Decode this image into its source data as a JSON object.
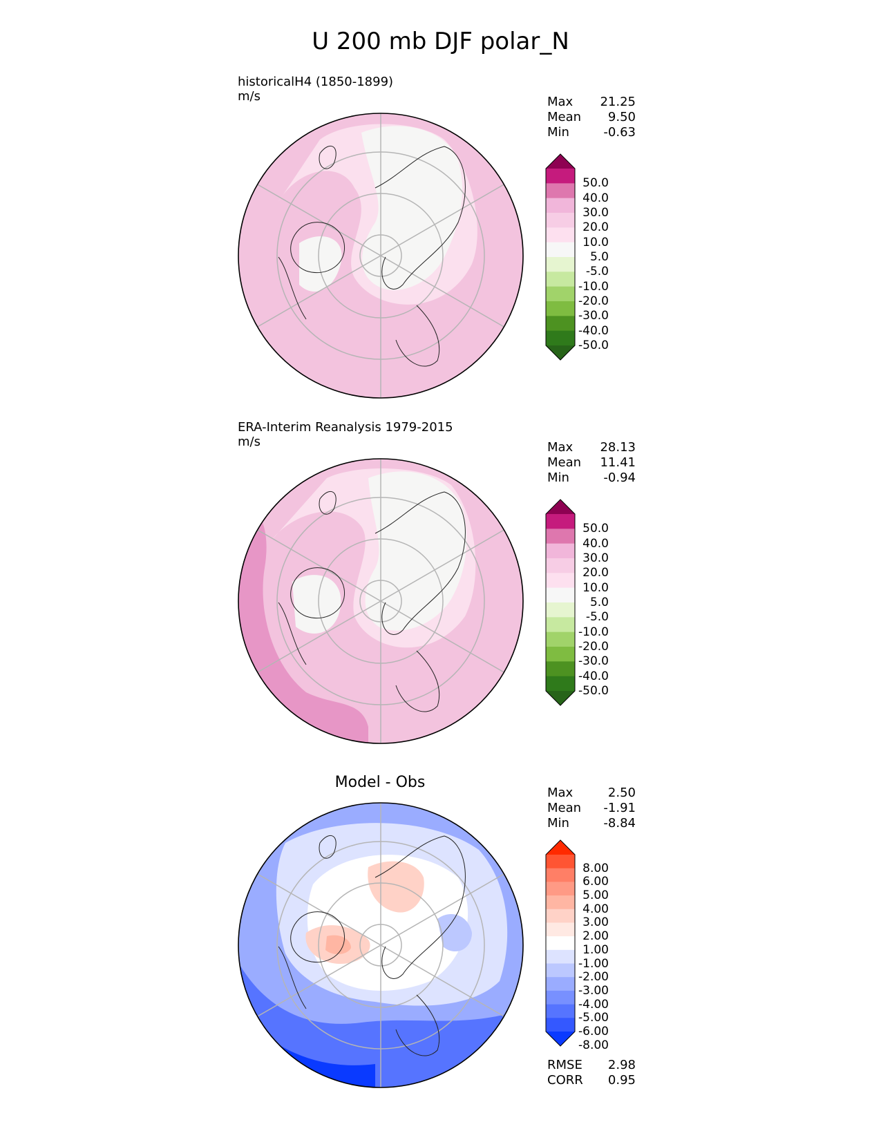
{
  "title": "U 200 mb DJF polar_N",
  "panels": [
    {
      "label_line1": "historicalH4 (1850-1899)",
      "label_line2": "m/s",
      "stats": [
        {
          "k": "Max",
          "v": "21.25"
        },
        {
          "k": "Mean",
          "v": "9.50"
        },
        {
          "k": "Min",
          "v": "-0.63"
        }
      ],
      "colorbar": {
        "labels": [
          "50.0",
          "40.0",
          "30.0",
          "20.0",
          "10.0",
          "5.0",
          "-5.0",
          "-10.0",
          "-20.0",
          "-30.0",
          "-40.0",
          "-50.0"
        ],
        "colors": [
          "#8e0152",
          "#c51b7d",
          "#de77ae",
          "#f1b6da",
          "#f7cde5",
          "#fde0ef",
          "#f7f7f7",
          "#e6f5d0",
          "#c7e9a0",
          "#a1d36a",
          "#7fbc41",
          "#4d9221",
          "#2f7a1b",
          "#276419"
        ]
      }
    },
    {
      "label_line1": "ERA-Interim Reanalysis 1979-2015",
      "label_line2": "m/s",
      "stats": [
        {
          "k": "Max",
          "v": "28.13"
        },
        {
          "k": "Mean",
          "v": "11.41"
        },
        {
          "k": "Min",
          "v": "-0.94"
        }
      ],
      "colorbar": {
        "labels": [
          "50.0",
          "40.0",
          "30.0",
          "20.0",
          "10.0",
          "5.0",
          "-5.0",
          "-10.0",
          "-20.0",
          "-30.0",
          "-40.0",
          "-50.0"
        ],
        "colors": [
          "#8e0152",
          "#c51b7d",
          "#de77ae",
          "#f1b6da",
          "#f7cde5",
          "#fde0ef",
          "#f7f7f7",
          "#e6f5d0",
          "#c7e9a0",
          "#a1d36a",
          "#7fbc41",
          "#4d9221",
          "#2f7a1b",
          "#276419"
        ]
      }
    },
    {
      "title": "Model - Obs",
      "stats": [
        {
          "k": "Max",
          "v": "2.50"
        },
        {
          "k": "Mean",
          "v": "-1.91"
        },
        {
          "k": "Min",
          "v": "-8.84"
        }
      ],
      "extra_stats": [
        {
          "k": "RMSE",
          "v": "2.98"
        },
        {
          "k": "CORR",
          "v": "0.95"
        }
      ],
      "colorbar": {
        "labels": [
          "8.00",
          "6.00",
          "5.00",
          "4.00",
          "3.00",
          "2.00",
          "1.00",
          "-1.00",
          "-2.00",
          "-3.00",
          "-4.00",
          "-5.00",
          "-6.00",
          "-8.00"
        ],
        "colors": [
          "#ff2a00",
          "#ff5533",
          "#ff7f66",
          "#ff9a85",
          "#ffb6a3",
          "#ffd2c7",
          "#ffe9e3",
          "#ffffff",
          "#dde3ff",
          "#bcc8ff",
          "#9aacff",
          "#7890ff",
          "#5674ff",
          "#3458ff",
          "#0a3aff"
        ]
      }
    }
  ]
}
